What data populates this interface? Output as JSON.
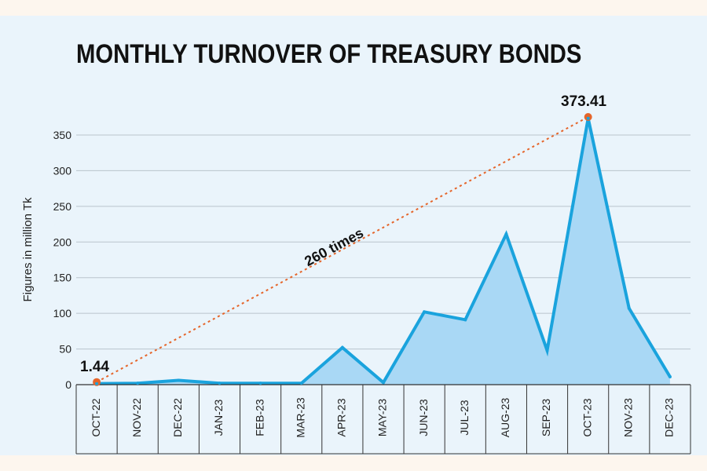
{
  "chart_data": {
    "type": "area",
    "title": "MONTHLY TURNOVER OF TREASURY BONDS",
    "ylabel": "Figures in million Tk",
    "xlabel": "",
    "categories": [
      "OCT-22",
      "NOV-22",
      "DEC-22",
      "JAN-23",
      "FEB-23",
      "MAR-23",
      "APR-23",
      "MAY-23",
      "JUN-23",
      "JUL-23",
      "AUG-23",
      "SEP-23",
      "OCT-23",
      "NOV-23",
      "DEC-23"
    ],
    "values": [
      1.44,
      2,
      6,
      2,
      2,
      2,
      52,
      3,
      102,
      91,
      211,
      48,
      373.41,
      107,
      11
    ],
    "ylim": [
      0,
      350
    ],
    "yticks": [
      0,
      50,
      100,
      150,
      200,
      250,
      300,
      350
    ],
    "grid": true,
    "colors": {
      "line": "#1aa3dd",
      "fill": "#a9d8f5",
      "marker": "#e5652a",
      "dashed": "#e5652a",
      "grid": "#b9c4cc"
    },
    "annotations": {
      "start_label": "1.44",
      "peak_label": "373.41",
      "growth_label": "260 times"
    }
  }
}
